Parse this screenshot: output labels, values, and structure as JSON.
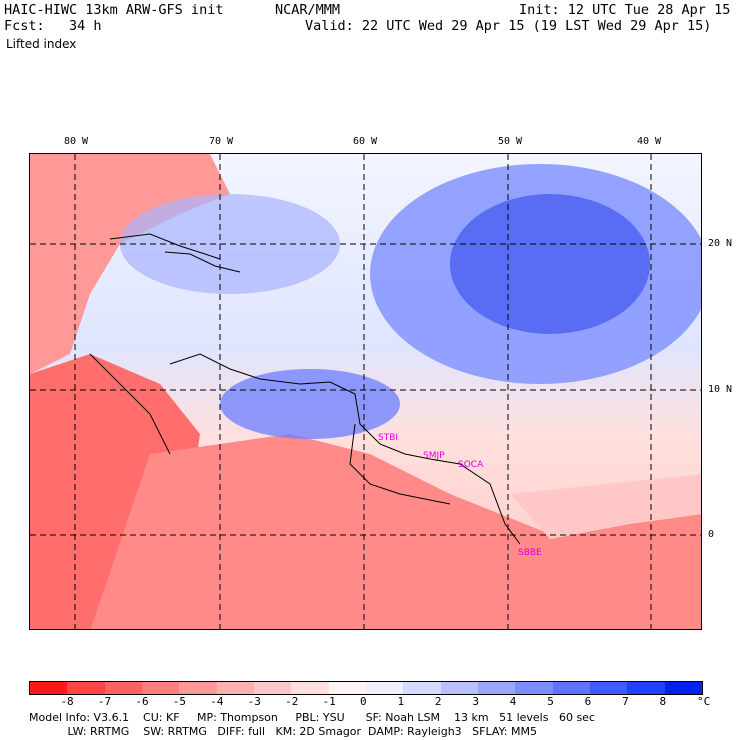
{
  "header": {
    "model": "HAIC-HIWC 13km ARW-GFS init",
    "org": "NCAR/MMM",
    "init": "Init: 12 UTC Tue 28 Apr 15",
    "fcst": "Fcst:   34 h",
    "valid": "Valid: 22 UTC Wed 29 Apr 15 (19 LST Wed 29 Apr 15)",
    "field": "Lifted index"
  },
  "map": {
    "lon_labels": [
      "80 W",
      "70 W",
      "60 W",
      "50 W",
      "40 W"
    ],
    "lat_labels": [
      "20 N",
      "10 N",
      "0"
    ],
    "cities": [
      "STBI",
      "SMJP",
      "SOCA",
      "SBBE"
    ]
  },
  "colorbar": {
    "unit": "°C",
    "labels": [
      "-8",
      "-7",
      "-6",
      "-5",
      "-4",
      "-3",
      "-2",
      "-1",
      "0",
      "1",
      "2",
      "3",
      "4",
      "5",
      "6",
      "7",
      "8"
    ],
    "colors": [
      "#ff1a1a",
      "#ff4444",
      "#ff6262",
      "#ff7e7e",
      "#ff9898",
      "#ffb0b0",
      "#ffc8c8",
      "#ffe0e0",
      "#fff4f4",
      "#f0f0ff",
      "#d6daff",
      "#b8c0ff",
      "#9aa6ff",
      "#7c8cff",
      "#5e72ff",
      "#3f58ff",
      "#2040ff",
      "#0022ee"
    ]
  },
  "footer": {
    "line1": "Model Info: V3.6.1    CU: KF     MP: Thompson     PBL: YSU      SF: Noah LSM    13 km   51 levels   60 sec",
    "line2": "           LW: RRTMG    SW: RRTMG   DIFF: full   KM: 2D Smagor  DAMP: Rayleigh3   SFLAY: MM5"
  }
}
